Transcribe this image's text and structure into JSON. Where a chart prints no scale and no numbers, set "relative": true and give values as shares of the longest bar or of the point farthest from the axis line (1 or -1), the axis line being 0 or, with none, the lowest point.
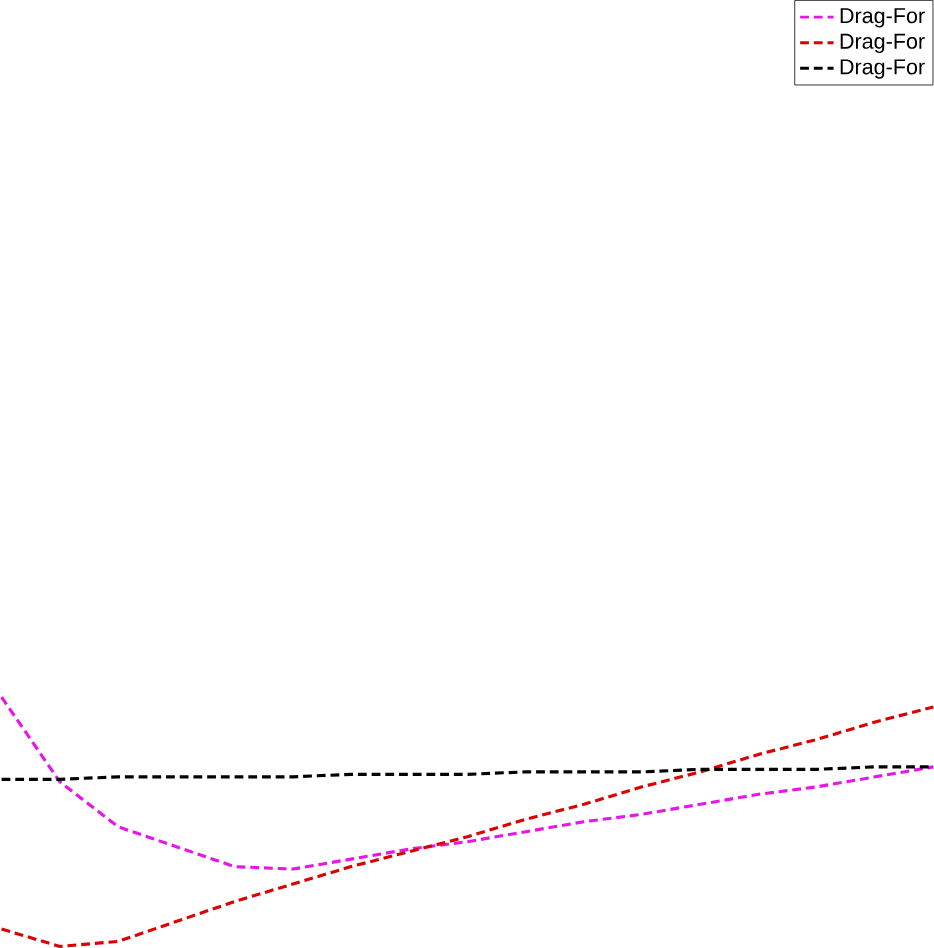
{
  "chart_data": {
    "type": "line",
    "relative": true,
    "line_style": "dashed",
    "marker": "none",
    "legend": "top right",
    "categories": [
      null,
      null,
      null,
      null,
      null,
      null,
      null,
      null,
      null,
      null,
      null,
      null,
      null,
      null,
      null,
      null,
      null
    ],
    "series": [
      {
        "name": "Drag-For",
        "color": "#e815e8",
        "values": [
          1,
          0.66,
          0.48,
          0.4,
          0.32,
          0.31,
          0.35,
          0.39,
          0.42,
          0.46,
          0.5,
          0.53,
          0.57,
          0.61,
          0.64,
          0.68,
          0.72
        ]
      },
      {
        "name": "Drag-For",
        "color": "#dd0000",
        "values": [
          0.07,
          0,
          0.02,
          0.1,
          0.18,
          0.25,
          0.32,
          0.38,
          0.44,
          0.51,
          0.57,
          0.64,
          0.7,
          0.77,
          0.83,
          0.9,
          0.96
        ]
      },
      {
        "name": "Drag-For",
        "color": "#000000",
        "values": [
          0.67,
          0.67,
          0.68,
          0.68,
          0.68,
          0.68,
          0.69,
          0.69,
          0.69,
          0.7,
          0.7,
          0.7,
          0.71,
          0.71,
          0.71,
          0.72,
          0.72
        ]
      }
    ]
  }
}
